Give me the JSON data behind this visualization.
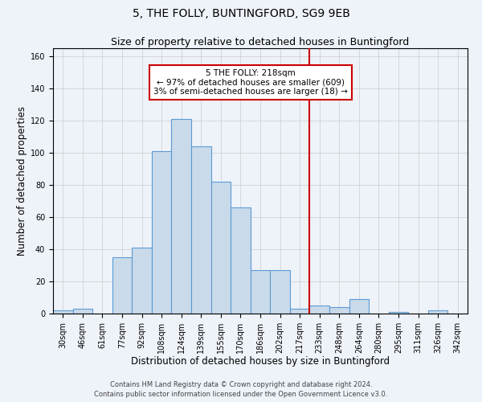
{
  "title1": "5, THE FOLLY, BUNTINGFORD, SG9 9EB",
  "title2": "Size of property relative to detached houses in Buntingford",
  "xlabel": "Distribution of detached houses by size in Buntingford",
  "ylabel": "Number of detached properties",
  "categories": [
    "30sqm",
    "46sqm",
    "61sqm",
    "77sqm",
    "92sqm",
    "108sqm",
    "124sqm",
    "139sqm",
    "155sqm",
    "170sqm",
    "186sqm",
    "202sqm",
    "217sqm",
    "233sqm",
    "248sqm",
    "264sqm",
    "280sqm",
    "295sqm",
    "311sqm",
    "326sqm",
    "342sqm"
  ],
  "values": [
    2,
    3,
    0,
    35,
    41,
    101,
    121,
    104,
    82,
    66,
    27,
    27,
    3,
    5,
    4,
    9,
    0,
    1,
    0,
    2,
    0
  ],
  "bar_color": "#c9daea",
  "bar_edge_color": "#5b9bd5",
  "grid_color": "#cccccc",
  "bg_color": "#eef2f9",
  "vline_color": "#cc0000",
  "annotation_text": "5 THE FOLLY: 218sqm\n← 97% of detached houses are smaller (609)\n3% of semi-detached houses are larger (18) →",
  "annotation_box_color": "#ffffff",
  "annotation_edge_color": "#cc0000",
  "footnote1": "Contains HM Land Registry data © Crown copyright and database right 2024.",
  "footnote2": "Contains public sector information licensed under the Open Government Licence v3.0.",
  "ylim": [
    0,
    165
  ],
  "yticks": [
    0,
    20,
    40,
    60,
    80,
    100,
    120,
    140,
    160
  ],
  "title1_fontsize": 10,
  "title2_fontsize": 9,
  "xlabel_fontsize": 8.5,
  "ylabel_fontsize": 8.5,
  "tick_fontsize": 7,
  "footnote_fontsize": 6,
  "annotation_fontsize": 7.5
}
